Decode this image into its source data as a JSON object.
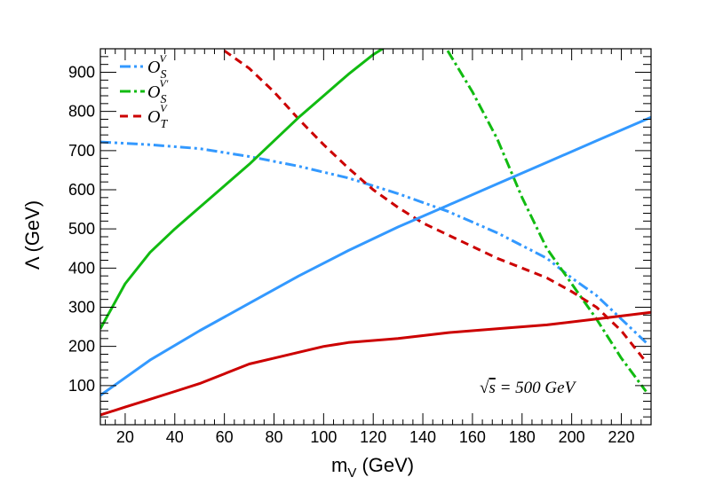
{
  "chart_data": {
    "type": "line",
    "title": "",
    "xlabel": "m",
    "xlabel_sub": "V",
    "xlabel_unit": " (GeV)",
    "ylabel": "Λ (GeV)",
    "xlim": [
      10,
      232
    ],
    "ylim": [
      0,
      960
    ],
    "x_ticks": [
      20,
      40,
      60,
      80,
      100,
      120,
      140,
      160,
      180,
      200,
      220
    ],
    "y_ticks": [
      100,
      200,
      300,
      400,
      500,
      600,
      700,
      800,
      900
    ],
    "x_tick_labels": [
      "20",
      "40",
      "60",
      "80",
      "100",
      "120",
      "140",
      "160",
      "180",
      "200",
      "220"
    ],
    "y_tick_labels": [
      "100",
      "200",
      "300",
      "400",
      "500",
      "600",
      "700",
      "800",
      "900"
    ],
    "annotation": {
      "sqrt": "√",
      "s": "s",
      "rest": " = 500 GeV"
    },
    "legend": [
      {
        "base": "O",
        "sup": "V",
        "sub": "S",
        "color": "#3399ff",
        "dash": "12,4,3,4,3,4"
      },
      {
        "base": "O",
        "sup": "V'",
        "sub": "S",
        "color": "#11bb11",
        "dash": "12,4,3,4"
      },
      {
        "base": "O",
        "sup": "V",
        "sub": "T",
        "color": "#cc0000",
        "dash": "9,6"
      }
    ],
    "series": [
      {
        "name": "O_S^V unitarity",
        "color": "#3399ff",
        "dash": "12,4,3,4,3,4",
        "width": 3,
        "x": [
          10,
          30,
          50,
          70,
          90,
          110,
          130,
          150,
          170,
          190,
          200,
          210,
          220,
          230
        ],
        "y": [
          722,
          715,
          705,
          685,
          660,
          630,
          590,
          545,
          490,
          425,
          375,
          330,
          270,
          210
        ]
      },
      {
        "name": "O_S^V' unitarity",
        "color": "#11bb11",
        "dash": "12,4,3,4",
        "width": 3,
        "x": [
          150,
          160,
          170,
          180,
          190,
          200,
          210,
          220,
          230
        ],
        "y": [
          955,
          850,
          730,
          580,
          450,
          360,
          270,
          170,
          85
        ]
      },
      {
        "name": "O_T^V unitarity",
        "color": "#cc0000",
        "dash": "9,6",
        "width": 3,
        "x": [
          60,
          70,
          80,
          90,
          100,
          110,
          120,
          130,
          140,
          150,
          160,
          170,
          180,
          190,
          200,
          210,
          220,
          230
        ],
        "y": [
          955,
          910,
          850,
          780,
          715,
          655,
          600,
          555,
          515,
          485,
          455,
          425,
          400,
          375,
          340,
          300,
          240,
          160
        ]
      },
      {
        "name": "O_S^V' solid",
        "color": "#11bb11",
        "dash": "",
        "width": 3,
        "x": [
          10,
          20,
          30,
          40,
          50,
          60,
          70,
          80,
          90,
          100,
          110,
          120,
          125
        ],
        "y": [
          245,
          360,
          440,
          500,
          555,
          610,
          665,
          725,
          785,
          840,
          895,
          945,
          965
        ]
      },
      {
        "name": "blue solid",
        "color": "#3399ff",
        "dash": "",
        "width": 3,
        "x": [
          10,
          30,
          50,
          70,
          90,
          110,
          130,
          150,
          170,
          190,
          210,
          232
        ],
        "y": [
          75,
          165,
          240,
          310,
          380,
          445,
          505,
          560,
          615,
          670,
          725,
          785
        ]
      },
      {
        "name": "red solid",
        "color": "#cc0000",
        "dash": "",
        "width": 3,
        "x": [
          10,
          20,
          30,
          40,
          50,
          60,
          70,
          80,
          90,
          100,
          110,
          130,
          150,
          170,
          190,
          210,
          232
        ],
        "y": [
          25,
          45,
          65,
          85,
          105,
          130,
          155,
          170,
          185,
          200,
          210,
          220,
          235,
          245,
          255,
          270,
          287
        ]
      }
    ]
  }
}
